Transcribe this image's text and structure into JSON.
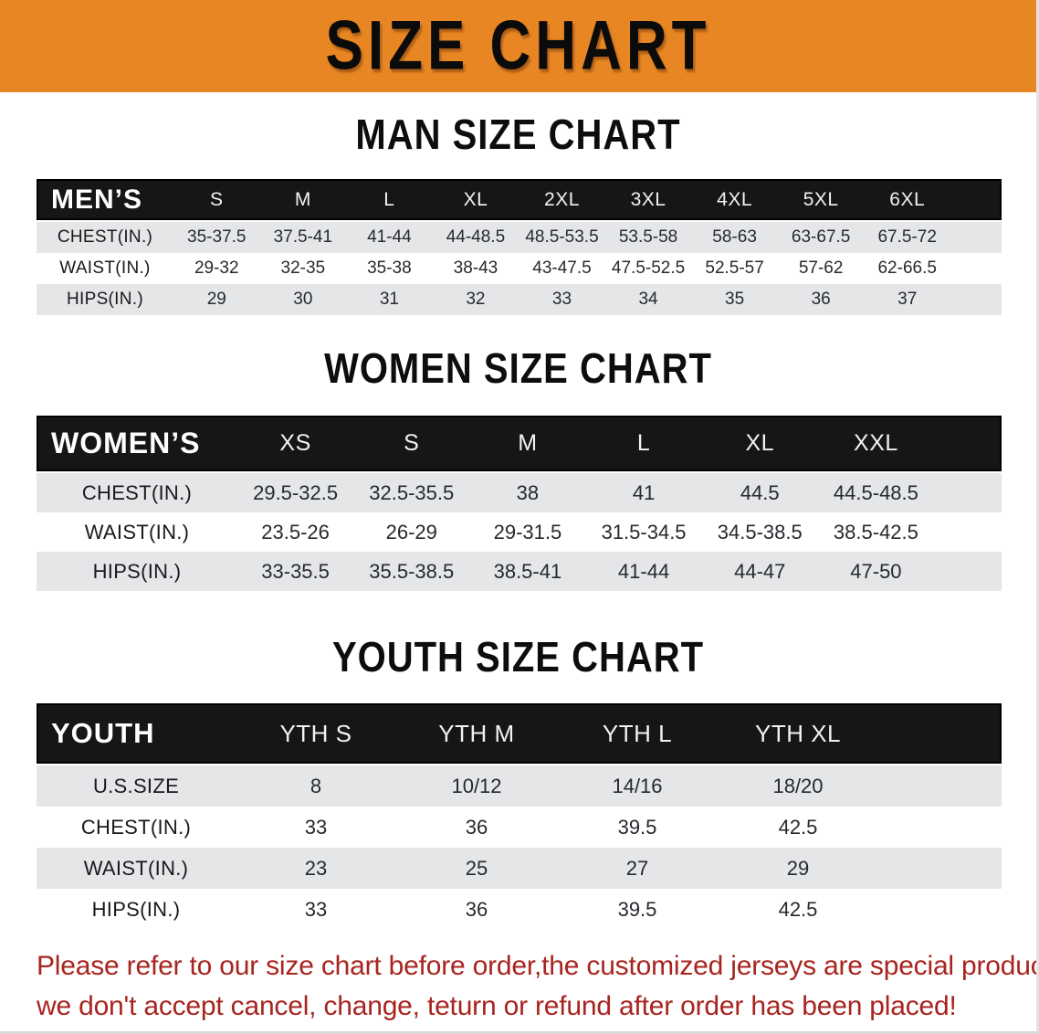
{
  "colors": {
    "banner-orange": "#E88623",
    "header-black": "#161616",
    "row-gray": "#e5e6e7",
    "row-white": "#ffffff",
    "footer-red": "#A8241F",
    "title-black": "#0d0d0d"
  },
  "banner": {
    "title": "SIZE CHART"
  },
  "sections": [
    {
      "title": "MAN SIZE CHART",
      "table": {
        "header_label": "MEN’S",
        "columns": [
          "S",
          "M",
          "L",
          "XL",
          "2XL",
          "3XL",
          "4XL",
          "5XL",
          "6XL"
        ],
        "rows": [
          {
            "label": "CHEST(IN.)",
            "values": [
              "35-37.5",
              "37.5-41",
              "41-44",
              "44-48.5",
              "48.5-53.5",
              "53.5-58",
              "58-63",
              "63-67.5",
              "67.5-72"
            ]
          },
          {
            "label": "WAIST(IN.)",
            "values": [
              "29-32",
              "32-35",
              "35-38",
              "38-43",
              "43-47.5",
              "47.5-52.5",
              "52.5-57",
              "57-62",
              "62-66.5"
            ]
          },
          {
            "label": "HIPS(IN.)",
            "values": [
              "29",
              "30",
              "31",
              "32",
              "33",
              "34",
              "35",
              "36",
              "37"
            ]
          }
        ]
      }
    },
    {
      "title": "WOMEN SIZE CHART",
      "table": {
        "header_label": "WOMEN’S",
        "columns": [
          "XS",
          "S",
          "M",
          "L",
          "XL",
          "XXL"
        ],
        "rows": [
          {
            "label": "CHEST(IN.)",
            "values": [
              "29.5-32.5",
              "32.5-35.5",
              "38",
              "41",
              "44.5",
              "44.5-48.5"
            ]
          },
          {
            "label": "WAIST(IN.)",
            "values": [
              "23.5-26",
              "26-29",
              "29-31.5",
              "31.5-34.5",
              "34.5-38.5",
              "38.5-42.5"
            ]
          },
          {
            "label": "HIPS(IN.)",
            "values": [
              "33-35.5",
              "35.5-38.5",
              "38.5-41",
              "41-44",
              "44-47",
              "47-50"
            ]
          }
        ]
      }
    },
    {
      "title": "YOUTH SIZE CHART",
      "table": {
        "header_label": "YOUTH",
        "columns": [
          "YTH S",
          "YTH M",
          "YTH L",
          "YTH XL"
        ],
        "rows": [
          {
            "label": "U.S.SIZE",
            "values": [
              "8",
              "10/12",
              "14/16",
              "18/20"
            ]
          },
          {
            "label": "CHEST(IN.)",
            "values": [
              "33",
              "36",
              "39.5",
              "42.5"
            ]
          },
          {
            "label": "WAIST(IN.)",
            "values": [
              "23",
              "25",
              "27",
              "29"
            ]
          },
          {
            "label": "HIPS(IN.)",
            "values": [
              "33",
              "36",
              "39.5",
              "42.5"
            ]
          }
        ]
      }
    }
  ],
  "footer": {
    "line1": "Please refer to our size chart before order,the customized jerseys are special products,",
    "line2": "we don't accept cancel, change, teturn or refund after order has been placed!"
  }
}
